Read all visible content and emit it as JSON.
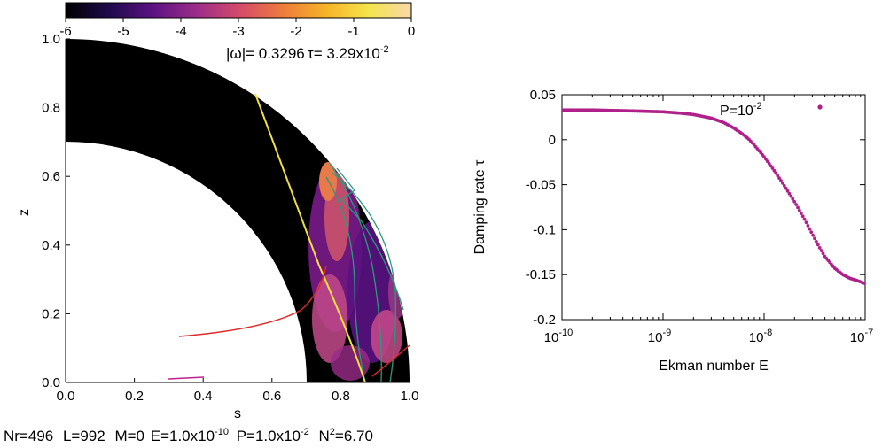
{
  "left_panel": {
    "colorbar": {
      "ticks": [
        "-6",
        "-5",
        "-4",
        "-3",
        "-2",
        "-1",
        "0"
      ],
      "colors": [
        "#000000",
        "#1e0a4a",
        "#5a1282",
        "#9a2c8a",
        "#d24a6a",
        "#ee7a3c",
        "#f6b227",
        "#f4e44c",
        "#f8d8a8"
      ]
    },
    "header": {
      "omega": "|ω|= 0.3296",
      "tau_prefix": "τ= 3.29x10",
      "tau_exp": "-2"
    },
    "x_axis": {
      "label": "s",
      "ticks": [
        "0.0",
        "0.2",
        "0.4",
        "0.6",
        "0.8",
        "1.0"
      ]
    },
    "y_axis": {
      "label": "z",
      "ticks": [
        "0.0",
        "0.2",
        "0.4",
        "0.6",
        "0.8",
        "1.0"
      ]
    },
    "footer": {
      "nr": "Nr=496",
      "l": "L=992",
      "m": "M=0",
      "e_prefix": "E=1.0x10",
      "e_exp": "-10",
      "p_prefix": "P=1.0x10",
      "p_exp": "-2",
      "n_prefix": "N",
      "n_exp": "2",
      "n_suffix": "=6.70"
    },
    "colors": {
      "critical_line": "#f0e040",
      "turning_line": "#e02828",
      "characteristics": "#2a9a7a"
    }
  },
  "chart_data": {
    "type": "scatter",
    "xlabel": "Ekman number E",
    "ylabel": "Damping rate τ",
    "xscale": "log",
    "xlim": [
      1e-10,
      1e-07
    ],
    "ylim": [
      -0.2,
      0.05
    ],
    "x_ticks": [
      {
        "value": 1e-10,
        "base": "10",
        "exp": "-10"
      },
      {
        "value": 1e-09,
        "base": "10",
        "exp": "-9"
      },
      {
        "value": 1e-08,
        "base": "10",
        "exp": "-8"
      },
      {
        "value": 1e-07,
        "base": "10",
        "exp": "-7"
      }
    ],
    "y_ticks": [
      "0.05",
      "0",
      "-0.05",
      "-0.1",
      "-0.15",
      "-0.2"
    ],
    "y_tick_values": [
      0.05,
      0,
      -0.05,
      -0.1,
      -0.15,
      -0.2
    ],
    "legend": {
      "prefix": "P=10",
      "exp": "-2",
      "position": "top-right"
    },
    "color": "#b0208a",
    "series": [
      {
        "x": [
          1e-10,
          2e-10,
          3e-10,
          5e-10,
          7e-10,
          1e-09,
          1.5e-09,
          2e-09,
          3e-09,
          4e-09,
          5e-09,
          6e-09,
          7e-09,
          8e-09,
          1e-08,
          1.2e-08,
          1.5e-08,
          2e-08,
          2.5e-08,
          3e-08,
          3.5e-08,
          4e-08,
          5e-08,
          6e-08,
          7e-08,
          8e-08,
          9e-08,
          1e-07
        ],
        "y": [
          0.033,
          0.033,
          0.0325,
          0.032,
          0.0315,
          0.031,
          0.0295,
          0.028,
          0.024,
          0.019,
          0.013,
          0.007,
          0.001,
          -0.006,
          -0.019,
          -0.031,
          -0.047,
          -0.069,
          -0.088,
          -0.105,
          -0.119,
          -0.13,
          -0.143,
          -0.15,
          -0.154,
          -0.156,
          -0.158,
          -0.16
        ]
      }
    ]
  }
}
